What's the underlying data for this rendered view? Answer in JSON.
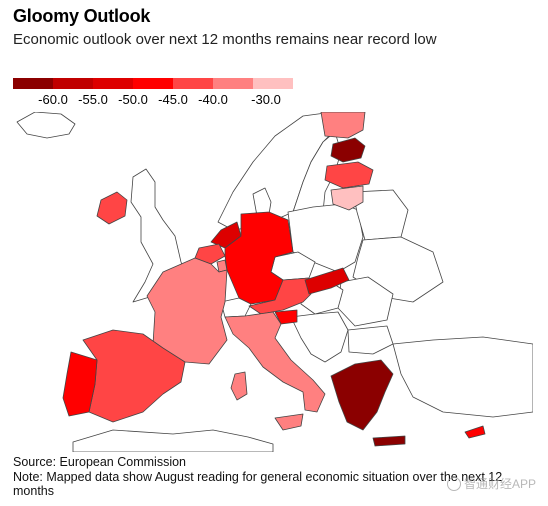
{
  "title": "Gloomy Outlook",
  "subtitle": "Economic outlook over next 12 months remains near record low",
  "legend": {
    "swatch_colors": [
      "#8b0000",
      "#c00000",
      "#dd0000",
      "#ff0000",
      "#ff4545",
      "#ff8080",
      "#ffc0c0"
    ],
    "tick_labels": [
      "-60.0",
      "-55.0",
      "-50.0",
      "-45.0",
      "-40.0",
      "-30.0"
    ]
  },
  "map": {
    "fill_default": "#ffffff",
    "border_color": "#444444",
    "regions": [
      {
        "name": "Finland",
        "color": "#ff8080"
      },
      {
        "name": "Estonia",
        "color": "#8b0000"
      },
      {
        "name": "Latvia",
        "color": "#ff4545"
      },
      {
        "name": "Lithuania",
        "color": "#ffc0c0"
      },
      {
        "name": "Ireland",
        "color": "#ff4545"
      },
      {
        "name": "Netherlands",
        "color": "#dd0000"
      },
      {
        "name": "Belgium",
        "color": "#ff4545"
      },
      {
        "name": "Luxembourg",
        "color": "#ff8080"
      },
      {
        "name": "Germany",
        "color": "#ff0000"
      },
      {
        "name": "France",
        "color": "#ff8080"
      },
      {
        "name": "Austria",
        "color": "#ff4545"
      },
      {
        "name": "Slovenia",
        "color": "#ff0000"
      },
      {
        "name": "Slovakia",
        "color": "#dd0000"
      },
      {
        "name": "Hungary",
        "color": "#ffffff"
      },
      {
        "name": "Italy",
        "color": "#ff8080"
      },
      {
        "name": "Spain",
        "color": "#ff4545"
      },
      {
        "name": "Portugal",
        "color": "#ff0000"
      },
      {
        "name": "Greece",
        "color": "#8b0000"
      },
      {
        "name": "Cyprus",
        "color": "#ff0000"
      }
    ]
  },
  "footer": {
    "source": "Source: European Commission",
    "note": "Note: Mapped data show August reading for general economic situation over the next 12 months"
  },
  "watermark": "智通财经APP"
}
